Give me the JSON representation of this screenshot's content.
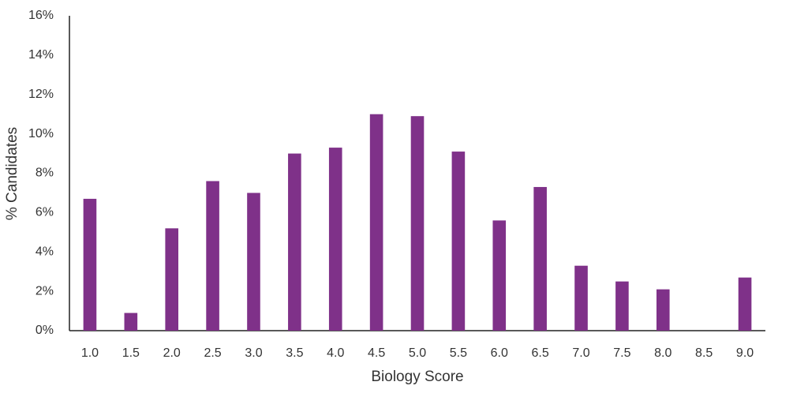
{
  "chart_data": {
    "type": "bar",
    "x_label": "Biology Score",
    "y_label": "% Candidates",
    "categories": [
      "1.0",
      "1.5",
      "2.0",
      "2.5",
      "3.0",
      "3.5",
      "4.0",
      "4.5",
      "5.0",
      "5.5",
      "6.0",
      "6.5",
      "7.0",
      "7.5",
      "8.0",
      "8.5",
      "9.0"
    ],
    "values": [
      6.7,
      0.9,
      5.2,
      7.6,
      7.0,
      9.0,
      9.3,
      11.0,
      10.9,
      9.1,
      5.6,
      7.3,
      3.3,
      2.5,
      2.1,
      0,
      2.7
    ],
    "color": "#7f3189",
    "ylim": [
      0,
      16
    ],
    "yticks": [
      {
        "value": 0,
        "label": "0%"
      },
      {
        "value": 2,
        "label": "2%"
      },
      {
        "value": 4,
        "label": "4%"
      },
      {
        "value": 6,
        "label": "6%"
      },
      {
        "value": 8,
        "label": "8%"
      },
      {
        "value": 10,
        "label": "10%"
      },
      {
        "value": 12,
        "label": "12%"
      },
      {
        "value": 14,
        "label": "14%"
      },
      {
        "value": 16,
        "label": "16%"
      }
    ],
    "grid": false
  }
}
